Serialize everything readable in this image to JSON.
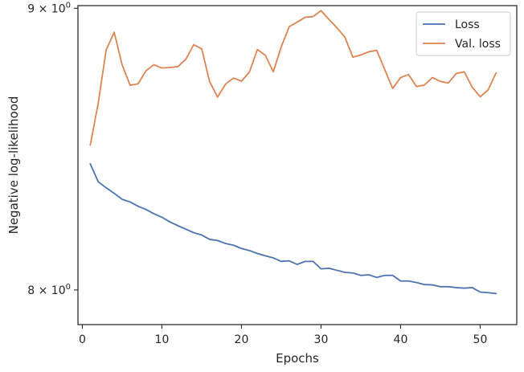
{
  "chart_data": {
    "type": "line",
    "xlabel": "Epochs",
    "ylabel": "Negative log-likelihood",
    "yscale": "log",
    "grid": false,
    "legend_position": "top-right",
    "xlim": [
      -0.55,
      54.6
    ],
    "ylim": [
      7.885,
      9.01
    ],
    "x_ticks": [
      0,
      10,
      20,
      30,
      40,
      50
    ],
    "y_ticks": [
      {
        "value": 9,
        "label_base": "9 × 10",
        "label_exp": "0"
      },
      {
        "value": 8,
        "label_base": "8 × 10",
        "label_exp": "0"
      }
    ],
    "series": [
      {
        "name": "Loss",
        "color": "#4c72b0",
        "x": [
          1,
          2,
          3,
          4,
          5,
          6,
          7,
          8,
          9,
          10,
          11,
          12,
          13,
          14,
          15,
          16,
          17,
          18,
          19,
          20,
          21,
          22,
          23,
          24,
          25,
          26,
          27,
          28,
          29,
          30,
          31,
          32,
          33,
          34,
          35,
          36,
          37,
          38,
          39,
          40,
          41,
          42,
          43,
          44,
          45,
          46,
          47,
          48,
          49,
          50,
          51,
          52
        ],
        "values": [
          8.433,
          8.37,
          8.349,
          8.33,
          8.309,
          8.3,
          8.285,
          8.274,
          8.259,
          8.247,
          8.231,
          8.218,
          8.206,
          8.194,
          8.186,
          8.171,
          8.167,
          8.157,
          8.151,
          8.14,
          8.133,
          8.123,
          8.115,
          8.108,
          8.096,
          8.098,
          8.086,
          8.096,
          8.096,
          8.071,
          8.073,
          8.066,
          8.059,
          8.057,
          8.049,
          8.051,
          8.042,
          8.049,
          8.049,
          8.03,
          8.03,
          8.025,
          8.018,
          8.017,
          8.011,
          8.011,
          8.008,
          8.006,
          8.008,
          7.993,
          7.991,
          7.988
        ]
      },
      {
        "name": "Val. loss",
        "color": "#dd8452",
        "x": [
          1,
          2,
          3,
          4,
          5,
          6,
          7,
          8,
          9,
          10,
          11,
          12,
          13,
          14,
          15,
          16,
          17,
          18,
          19,
          20,
          21,
          22,
          23,
          24,
          25,
          26,
          27,
          28,
          29,
          30,
          31,
          32,
          33,
          34,
          35,
          36,
          37,
          38,
          39,
          40,
          41,
          42,
          43,
          44,
          45,
          46,
          47,
          48,
          49,
          50,
          51,
          52
        ],
        "values": [
          8.5,
          8.65,
          8.845,
          8.91,
          8.79,
          8.715,
          8.72,
          8.768,
          8.79,
          8.778,
          8.78,
          8.783,
          8.81,
          8.864,
          8.849,
          8.728,
          8.672,
          8.719,
          8.741,
          8.73,
          8.763,
          8.846,
          8.825,
          8.764,
          8.856,
          8.931,
          8.948,
          8.966,
          8.969,
          8.991,
          8.958,
          8.927,
          8.892,
          8.818,
          8.826,
          8.838,
          8.843,
          8.773,
          8.703,
          8.743,
          8.754,
          8.71,
          8.716,
          8.743,
          8.729,
          8.723,
          8.758,
          8.764,
          8.708,
          8.673,
          8.698,
          8.76
        ]
      }
    ]
  }
}
